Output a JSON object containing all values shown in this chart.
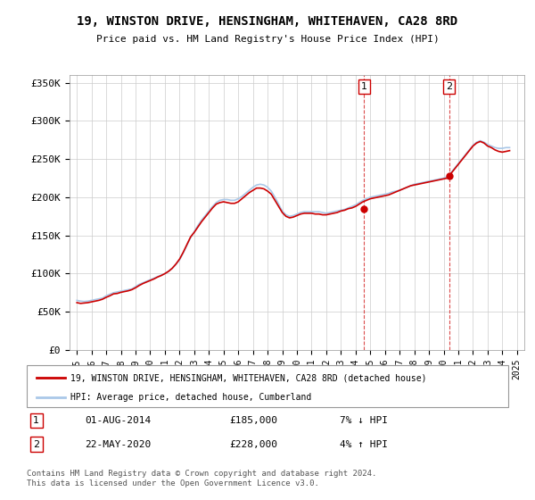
{
  "title": "19, WINSTON DRIVE, HENSINGHAM, WHITEHAVEN, CA28 8RD",
  "subtitle": "Price paid vs. HM Land Registry's House Price Index (HPI)",
  "xlabel": "",
  "ylabel": "",
  "ylim": [
    0,
    360000
  ],
  "yticks": [
    0,
    50000,
    100000,
    150000,
    200000,
    250000,
    300000,
    350000
  ],
  "ytick_labels": [
    "£0",
    "£50K",
    "£100K",
    "£150K",
    "£200K",
    "£250K",
    "£300K",
    "£350K"
  ],
  "hpi_color": "#aac8e8",
  "price_color": "#cc0000",
  "marker1_color": "#cc0000",
  "marker2_color": "#cc0000",
  "vline_color": "#cc0000",
  "background_color": "#ffffff",
  "grid_color": "#cccccc",
  "point1": {
    "date_num": 2014.58,
    "price": 185000,
    "label": "1",
    "date_str": "01-AUG-2014",
    "pct": "7%",
    "dir": "↓"
  },
  "point2": {
    "date_num": 2020.38,
    "price": 228000,
    "label": "2",
    "date_str": "22-MAY-2020",
    "pct": "4%",
    "dir": "↑"
  },
  "legend_label_red": "19, WINSTON DRIVE, HENSINGHAM, WHITEHAVEN, CA28 8RD (detached house)",
  "legend_label_blue": "HPI: Average price, detached house, Cumberland",
  "footer": "Contains HM Land Registry data © Crown copyright and database right 2024.\nThis data is licensed under the Open Government Licence v3.0.",
  "hpi_data": {
    "years": [
      1995.0,
      1995.25,
      1995.5,
      1995.75,
      1996.0,
      1996.25,
      1996.5,
      1996.75,
      1997.0,
      1997.25,
      1997.5,
      1997.75,
      1998.0,
      1998.25,
      1998.5,
      1998.75,
      1999.0,
      1999.25,
      1999.5,
      1999.75,
      2000.0,
      2000.25,
      2000.5,
      2000.75,
      2001.0,
      2001.25,
      2001.5,
      2001.75,
      2002.0,
      2002.25,
      2002.5,
      2002.75,
      2003.0,
      2003.25,
      2003.5,
      2003.75,
      2004.0,
      2004.25,
      2004.5,
      2004.75,
      2005.0,
      2005.25,
      2005.5,
      2005.75,
      2006.0,
      2006.25,
      2006.5,
      2006.75,
      2007.0,
      2007.25,
      2007.5,
      2007.75,
      2008.0,
      2008.25,
      2008.5,
      2008.75,
      2009.0,
      2009.25,
      2009.5,
      2009.75,
      2010.0,
      2010.25,
      2010.5,
      2010.75,
      2011.0,
      2011.25,
      2011.5,
      2011.75,
      2012.0,
      2012.25,
      2012.5,
      2012.75,
      2013.0,
      2013.25,
      2013.5,
      2013.75,
      2014.0,
      2014.25,
      2014.5,
      2014.75,
      2015.0,
      2015.25,
      2015.5,
      2015.75,
      2016.0,
      2016.25,
      2016.5,
      2016.75,
      2017.0,
      2017.25,
      2017.5,
      2017.75,
      2018.0,
      2018.25,
      2018.5,
      2018.75,
      2019.0,
      2019.25,
      2019.5,
      2019.75,
      2020.0,
      2020.25,
      2020.5,
      2020.75,
      2021.0,
      2021.25,
      2021.5,
      2021.75,
      2022.0,
      2022.25,
      2022.5,
      2022.75,
      2023.0,
      2023.25,
      2023.5,
      2023.75,
      2024.0,
      2024.25,
      2024.5
    ],
    "values": [
      65000,
      64000,
      63500,
      64000,
      65000,
      66000,
      67000,
      68000,
      71000,
      73000,
      75000,
      76000,
      77000,
      78000,
      79000,
      80000,
      83000,
      86000,
      88000,
      90000,
      92000,
      94000,
      96000,
      98000,
      100000,
      103000,
      107000,
      112000,
      118000,
      127000,
      137000,
      147000,
      155000,
      163000,
      170000,
      176000,
      182000,
      188000,
      193000,
      196000,
      197000,
      197000,
      196000,
      196000,
      198000,
      201000,
      205000,
      209000,
      213000,
      216000,
      217000,
      216000,
      213000,
      208000,
      200000,
      191000,
      182000,
      177000,
      175000,
      176000,
      178000,
      180000,
      181000,
      181000,
      181000,
      181000,
      181000,
      180000,
      179000,
      180000,
      181000,
      182000,
      183000,
      184000,
      186000,
      188000,
      190000,
      193000,
      196000,
      198000,
      200000,
      201000,
      202000,
      203000,
      204000,
      205000,
      207000,
      208000,
      209000,
      211000,
      213000,
      215000,
      217000,
      218000,
      219000,
      220000,
      221000,
      222000,
      223000,
      224000,
      225000,
      227000,
      232000,
      238000,
      244000,
      250000,
      256000,
      262000,
      268000,
      272000,
      274000,
      272000,
      269000,
      267000,
      265000,
      264000,
      264000,
      265000,
      265000
    ]
  },
  "price_data": {
    "years": [
      1995.0,
      1995.25,
      1995.5,
      1995.75,
      1996.0,
      1996.25,
      1996.5,
      1996.75,
      1997.0,
      1997.25,
      1997.5,
      1997.75,
      1998.0,
      1998.25,
      1998.5,
      1998.75,
      1999.0,
      1999.25,
      1999.5,
      1999.75,
      2000.0,
      2000.25,
      2000.5,
      2000.75,
      2001.0,
      2001.25,
      2001.5,
      2001.75,
      2002.0,
      2002.25,
      2002.5,
      2002.75,
      2003.0,
      2003.25,
      2003.5,
      2003.75,
      2004.0,
      2004.25,
      2004.5,
      2004.75,
      2005.0,
      2005.25,
      2005.5,
      2005.75,
      2006.0,
      2006.25,
      2006.5,
      2006.75,
      2007.0,
      2007.25,
      2007.5,
      2007.75,
      2008.0,
      2008.25,
      2008.5,
      2008.75,
      2009.0,
      2009.25,
      2009.5,
      2009.75,
      2010.0,
      2010.25,
      2010.5,
      2010.75,
      2011.0,
      2011.25,
      2011.5,
      2011.75,
      2012.0,
      2012.25,
      2012.5,
      2012.75,
      2013.0,
      2013.25,
      2013.5,
      2013.75,
      2014.0,
      2014.25,
      2014.5,
      2014.75,
      2015.0,
      2015.25,
      2015.5,
      2015.75,
      2016.0,
      2016.25,
      2016.5,
      2016.75,
      2017.0,
      2017.25,
      2017.5,
      2017.75,
      2018.0,
      2018.25,
      2018.5,
      2018.75,
      2019.0,
      2019.25,
      2019.5,
      2019.75,
      2020.0,
      2020.25,
      2020.5,
      2020.75,
      2021.0,
      2021.25,
      2021.5,
      2021.75,
      2022.0,
      2022.25,
      2022.5,
      2022.75,
      2023.0,
      2023.25,
      2023.5,
      2023.75,
      2024.0,
      2024.25,
      2024.5
    ],
    "values": [
      62000,
      61000,
      61500,
      62000,
      63000,
      64000,
      65000,
      66500,
      69000,
      71000,
      73500,
      74000,
      75500,
      76500,
      77500,
      79000,
      81500,
      84500,
      87000,
      89000,
      91000,
      93000,
      95500,
      97500,
      100000,
      103000,
      107000,
      112500,
      119000,
      128000,
      138000,
      148000,
      154000,
      161000,
      168000,
      174000,
      180000,
      186000,
      191000,
      193000,
      194000,
      193000,
      192000,
      192000,
      194000,
      198000,
      202000,
      206000,
      209000,
      212000,
      212000,
      211000,
      208000,
      204000,
      196000,
      188000,
      180000,
      175000,
      173000,
      174000,
      176000,
      178000,
      179000,
      179000,
      179000,
      178000,
      178000,
      177000,
      177000,
      178000,
      179000,
      180000,
      182000,
      183000,
      185000,
      186000,
      188000,
      191000,
      194000,
      196000,
      198000,
      199000,
      200000,
      201000,
      202000,
      203000,
      205000,
      207000,
      209000,
      211000,
      213000,
      215000,
      216000,
      217000,
      218000,
      219000,
      220000,
      221000,
      222000,
      223000,
      224000,
      225000,
      231000,
      237000,
      243000,
      249000,
      255000,
      261000,
      267000,
      271000,
      273000,
      271000,
      267000,
      265000,
      262000,
      260000,
      259000,
      260000,
      261000
    ]
  }
}
